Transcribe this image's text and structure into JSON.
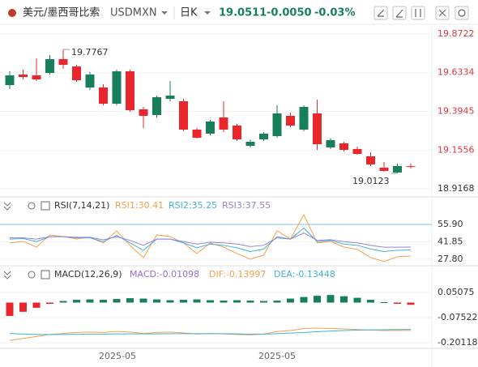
{
  "header": {
    "title": "美元/墨西哥比索",
    "symbol": "USDMXN",
    "period": "日K",
    "price": "19.0511",
    "change": "-0.0050",
    "change_pct": "-0.03%"
  },
  "x_labels": [
    "2025-05",
    "2025-05"
  ],
  "chart_data": [
    {
      "type": "candlestick",
      "up_color": "#17805a",
      "down_color": "#e8262c",
      "open": [
        19.557,
        19.622,
        19.617,
        19.632,
        19.717,
        19.672,
        19.542,
        19.542,
        19.442,
        19.642,
        19.407,
        19.372,
        19.472,
        19.457,
        19.282,
        19.257,
        19.357,
        19.307,
        19.182,
        19.222,
        19.242,
        19.367,
        19.282,
        19.382,
        19.172,
        19.197,
        19.162,
        19.117,
        19.047,
        19.017,
        19.0561
      ],
      "high": [
        19.642,
        19.652,
        19.722,
        19.742,
        19.7767,
        19.682,
        19.637,
        19.562,
        19.652,
        19.652,
        19.422,
        19.492,
        19.582,
        19.472,
        19.292,
        19.342,
        19.457,
        19.317,
        19.222,
        19.267,
        19.432,
        19.387,
        19.432,
        19.467,
        19.227,
        19.207,
        19.177,
        19.142,
        19.082,
        19.072,
        19.072
      ],
      "low": [
        19.532,
        19.592,
        19.582,
        19.622,
        19.657,
        19.577,
        19.527,
        19.432,
        19.432,
        19.392,
        19.292,
        19.357,
        19.457,
        19.272,
        19.227,
        19.247,
        19.267,
        19.212,
        19.172,
        19.212,
        19.232,
        19.297,
        19.272,
        19.157,
        19.162,
        19.147,
        19.127,
        19.057,
        19.022,
        19.0123,
        19.042
      ],
      "close": [
        19.617,
        19.607,
        19.592,
        19.717,
        19.682,
        19.587,
        19.622,
        19.442,
        19.642,
        19.402,
        19.367,
        19.482,
        19.492,
        19.282,
        19.232,
        19.332,
        19.282,
        19.222,
        19.207,
        19.257,
        19.382,
        19.307,
        19.422,
        19.192,
        19.217,
        19.157,
        19.132,
        19.067,
        19.027,
        19.057,
        19.0511
      ],
      "annotations": [
        19.7767,
        19.0123
      ],
      "ylim": [
        18.9168,
        19.8722
      ],
      "yticks": [
        19.8722,
        19.6334,
        19.3945,
        19.1556,
        18.9168
      ]
    },
    {
      "type": "line",
      "title": "RSI(7,14,21)",
      "series": [
        {
          "name": "RSI1:30.41",
          "color": "#f5a04c",
          "values": [
            40.9,
            42.2,
            37.6,
            47.4,
            46.1,
            44.1,
            45.5,
            40.9,
            50.7,
            38.9,
            29.1,
            47.4,
            46.1,
            40.9,
            32.4,
            40.9,
            37.6,
            32.4,
            27.8,
            31.1,
            50.7,
            44.1,
            63.7,
            40.9,
            42.2,
            37.6,
            35.7,
            29.1,
            25.9,
            29.8,
            30.41
          ]
        },
        {
          "name": "RSI2:35.25",
          "color": "#3fb3d8",
          "values": [
            44,
            44.5,
            42,
            46,
            46,
            45,
            45,
            42,
            47,
            41,
            35,
            44,
            44,
            41,
            37,
            40,
            39,
            37,
            34,
            36,
            46,
            44,
            53,
            42,
            43,
            40,
            39,
            36,
            34,
            35,
            35.25
          ]
        },
        {
          "name": "RSI3:37.55",
          "color": "#9b80d8",
          "values": [
            45,
            45,
            44,
            46,
            46,
            45.5,
            45.5,
            43.5,
            46,
            43,
            39,
            44,
            44,
            42,
            40,
            41.5,
            41,
            40,
            38,
            39,
            45,
            44,
            49,
            43,
            43.5,
            42,
            41,
            39,
            37.5,
            37.5,
            37.55
          ]
        }
      ],
      "ylim": [
        24.5,
        76.8
      ],
      "yticks": [
        {
          "value": 55.9,
          "label": "55.90"
        },
        41.85,
        {
          "value": 27.8,
          "label": "27.80"
        }
      ]
    },
    {
      "type": "combo",
      "title": "MACD(12,26,9)",
      "up_color": "#17805a",
      "down_color": "#e8262c",
      "series": [
        {
          "name": "MACD:-0.01098",
          "style": "bar",
          "color": "#9a6fd0",
          "values": [
            -0.067,
            -0.046,
            -0.026,
            -0.006,
            0.008,
            0.014,
            0.016,
            0.014,
            0.018,
            0.022,
            0.02,
            0.016,
            0.012,
            0.014,
            0.016,
            0.012,
            0.01,
            0.012,
            0.01,
            0.008,
            0.01,
            0.02,
            0.028,
            0.034,
            0.038,
            0.032,
            0.024,
            0.014,
            0.002,
            -0.006,
            -0.01098
          ]
        },
        {
          "name": "DIF:-0.13997",
          "style": "line",
          "color": "#f5a04c",
          "values": [
            -0.19,
            -0.18,
            -0.17,
            -0.16,
            -0.155,
            -0.15,
            -0.148,
            -0.15,
            -0.145,
            -0.148,
            -0.155,
            -0.15,
            -0.148,
            -0.152,
            -0.158,
            -0.155,
            -0.157,
            -0.16,
            -0.162,
            -0.158,
            -0.145,
            -0.14,
            -0.13,
            -0.128,
            -0.13,
            -0.132,
            -0.135,
            -0.137,
            -0.14,
            -0.139,
            -0.13997
          ]
        },
        {
          "name": "DEA:-0.13448",
          "style": "line",
          "color": "#3fb3d8",
          "values": [
            -0.155,
            -0.158,
            -0.16,
            -0.16,
            -0.16,
            -0.159,
            -0.158,
            -0.158,
            -0.157,
            -0.157,
            -0.157,
            -0.157,
            -0.156,
            -0.156,
            -0.156,
            -0.156,
            -0.156,
            -0.157,
            -0.158,
            -0.158,
            -0.156,
            -0.153,
            -0.15,
            -0.146,
            -0.143,
            -0.14,
            -0.138,
            -0.137,
            -0.136,
            -0.135,
            -0.13448
          ]
        }
      ],
      "ylim": [
        -0.2215,
        0.1686
      ],
      "yticks": [
        0.05075,
        -0.07522,
        -0.20118
      ]
    }
  ]
}
